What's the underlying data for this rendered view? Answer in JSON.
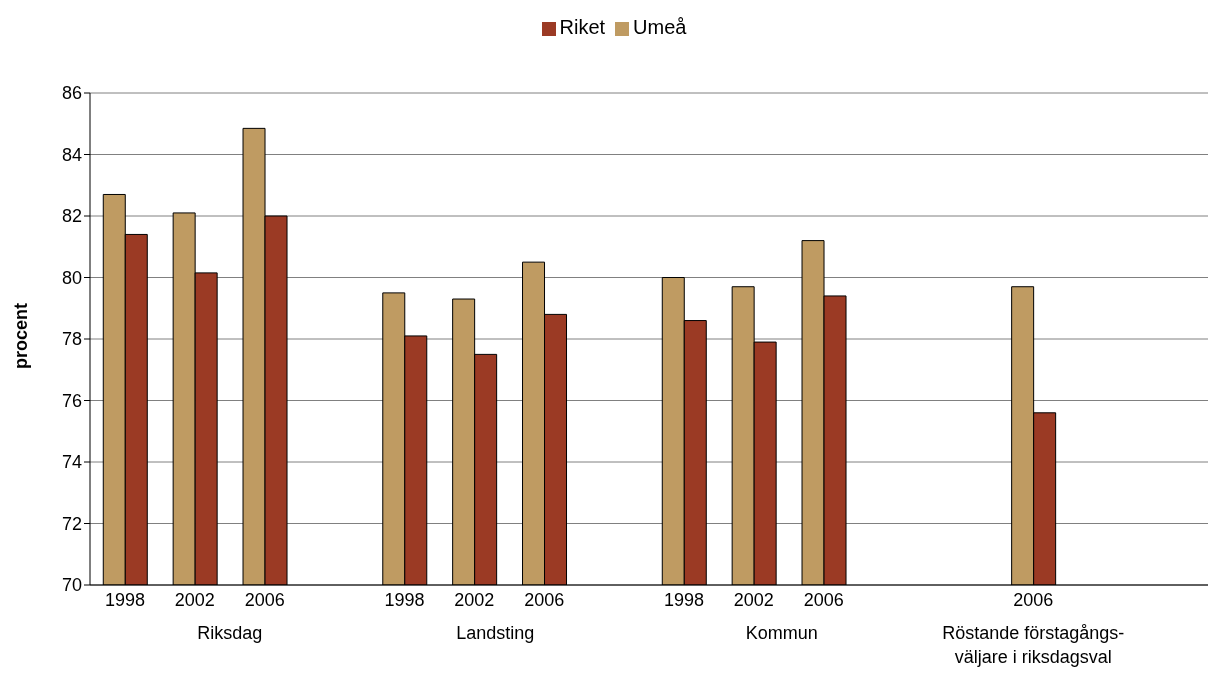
{
  "chart_data": {
    "type": "bar",
    "ylabel": "procent",
    "categories": [
      "1998",
      "2002",
      "2006",
      null,
      "1998",
      "2002",
      "2006",
      null,
      "1998",
      "2002",
      "2006",
      null,
      null,
      "2006",
      null,
      null
    ],
    "series": [
      {
        "name": "Umeå",
        "color": "#bf9b62",
        "values": [
          82.7,
          82.1,
          84.85,
          null,
          79.5,
          79.3,
          80.5,
          null,
          80.0,
          79.7,
          81.2,
          null,
          null,
          79.7,
          null,
          null
        ]
      },
      {
        "name": "Riket",
        "color": "#9b3a24",
        "values": [
          81.4,
          80.15,
          82.0,
          null,
          78.1,
          77.5,
          78.8,
          null,
          78.6,
          77.9,
          79.4,
          null,
          null,
          75.6,
          null,
          null
        ]
      }
    ],
    "ylim": [
      70,
      86
    ],
    "yticks": [
      70,
      72,
      74,
      76,
      78,
      80,
      82,
      84,
      86
    ],
    "grid": "y",
    "legend": "top",
    "annotations": [
      "Riksdag",
      "Landsting",
      "Kommun",
      "Röstande förstagångs- väljare i riksdagsval"
    ]
  }
}
